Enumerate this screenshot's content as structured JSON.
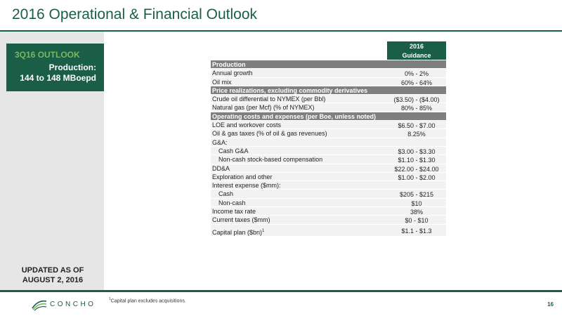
{
  "header": {
    "title": "2016 Operational & Financial Outlook"
  },
  "sidebar": {
    "outlook_title": "3Q16 OUTLOOK",
    "production_label": "Production:",
    "production_value": "144 to 148 MBoepd",
    "updated_line1": "UPDATED AS OF",
    "updated_line2": "AUGUST 2, 2016"
  },
  "table": {
    "guidance_year": "2016",
    "guidance_label": "Guidance",
    "rows": [
      {
        "type": "section",
        "label": "Production",
        "value": ""
      },
      {
        "type": "data",
        "label": "Annual growth",
        "value": "0%  -  2%"
      },
      {
        "type": "data",
        "label": "Oil mix",
        "value": "60%  -  64%"
      },
      {
        "type": "section",
        "label": "Price realizations, excluding commodity derivatives",
        "value": ""
      },
      {
        "type": "data",
        "label": "Crude oil differential to NYMEX (per Bbl)",
        "value": "($3.50)  -  ($4.00)"
      },
      {
        "type": "data",
        "label": "Natural gas (per Mcf) (% of NYMEX)",
        "value": "80%  -  85%"
      },
      {
        "type": "section",
        "label": "Operating costs and expenses (per Boe, unless noted)",
        "value": ""
      },
      {
        "type": "data",
        "label": "LOE and workover costs",
        "value": "$6.50  -  $7.00"
      },
      {
        "type": "data",
        "label": "Oil & gas taxes (% of oil & gas revenues)",
        "value": "8.25%"
      },
      {
        "type": "data",
        "label": "G&A:",
        "value": ""
      },
      {
        "type": "indent",
        "label": "Cash G&A",
        "value": "$3.00  -  $3.30"
      },
      {
        "type": "indent",
        "label": "Non-cash stock-based compensation",
        "value": "$1.10  -  $1.30"
      },
      {
        "type": "data",
        "label": "DD&A",
        "value": "$22.00  -  $24.00"
      },
      {
        "type": "data",
        "label": "Exploration and other",
        "value": "$1.00  -  $2.00"
      },
      {
        "type": "data",
        "label": "Interest expense ($mm):",
        "value": ""
      },
      {
        "type": "indent",
        "label": "Cash",
        "value": "$205  -  $215"
      },
      {
        "type": "indent",
        "label": "Non-cash",
        "value": "$10"
      },
      {
        "type": "data",
        "label": "Income tax rate",
        "value": "38%"
      },
      {
        "type": "data",
        "label": "Current taxes ($mm)",
        "value": "$0  -  $10"
      },
      {
        "type": "tall",
        "label": "Capital plan ($bn)",
        "sup": "1",
        "value": "$1.1  -  $1.3"
      }
    ]
  },
  "footer": {
    "footnote_sup": "1",
    "footnote": "Capital plan excludes acquisitions.",
    "logo_text": "CONCHO",
    "page_number": "16"
  },
  "colors": {
    "brand_green": "#1b5e48",
    "accent_green": "#7ab85f",
    "section_gray": "#7f7f7f",
    "row_gray": "#f2f2f2",
    "sidebar_gray": "#e6e6e6"
  }
}
